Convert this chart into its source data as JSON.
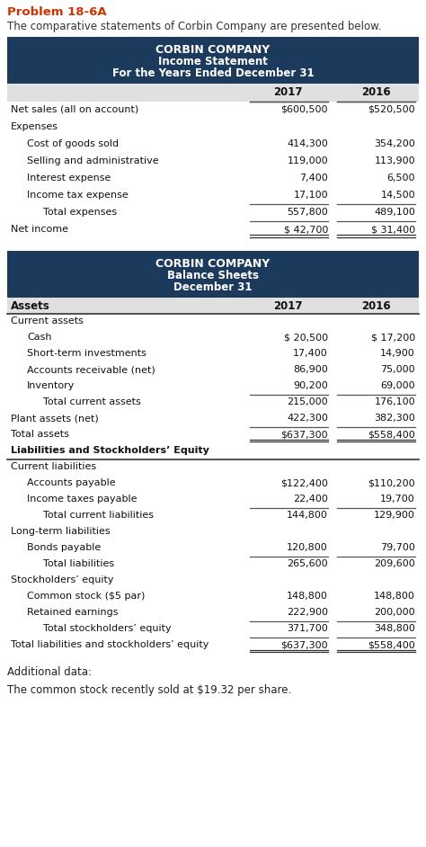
{
  "problem_title": "Problem 18-6A",
  "problem_desc": "The comparative statements of Corbin Company are presented below.",
  "header_bg": "#1b3a5c",
  "header_text_color": "#ffffff",
  "col_header_bg": "#e0e0e0",
  "income_header_lines": [
    "CORBIN COMPANY",
    "Income Statement",
    "For the Years Ended December 31"
  ],
  "balance_header_lines": [
    "CORBIN COMPANY",
    "Balance Sheets",
    "December 31"
  ],
  "income_rows": [
    {
      "label": "Net sales (all on account)",
      "v2017": "$600,500",
      "v2016": "$520,500",
      "indent": 0,
      "bold": false,
      "ul_before": true,
      "ul_after": false,
      "double_ul": false
    },
    {
      "label": "Expenses",
      "v2017": "",
      "v2016": "",
      "indent": 0,
      "bold": false,
      "ul_before": false,
      "ul_after": false,
      "double_ul": false
    },
    {
      "label": "Cost of goods sold",
      "v2017": "414,300",
      "v2016": "354,200",
      "indent": 1,
      "bold": false,
      "ul_before": false,
      "ul_after": false,
      "double_ul": false
    },
    {
      "label": "Selling and administrative",
      "v2017": "119,000",
      "v2016": "113,900",
      "indent": 1,
      "bold": false,
      "ul_before": false,
      "ul_after": false,
      "double_ul": false
    },
    {
      "label": "Interest expense",
      "v2017": "7,400",
      "v2016": "6,500",
      "indent": 1,
      "bold": false,
      "ul_before": false,
      "ul_after": false,
      "double_ul": false
    },
    {
      "label": "Income tax expense",
      "v2017": "17,100",
      "v2016": "14,500",
      "indent": 1,
      "bold": false,
      "ul_before": false,
      "ul_after": false,
      "double_ul": false
    },
    {
      "label": "Total expenses",
      "v2017": "557,800",
      "v2016": "489,100",
      "indent": 2,
      "bold": false,
      "ul_before": true,
      "ul_after": false,
      "double_ul": false
    },
    {
      "label": "Net income",
      "v2017": "$ 42,700",
      "v2016": "$ 31,400",
      "indent": 0,
      "bold": false,
      "ul_before": true,
      "ul_after": true,
      "double_ul": true
    }
  ],
  "balance_rows": [
    {
      "label": "Assets",
      "v2017": "2017",
      "v2016": "2016",
      "indent": 0,
      "bold": true,
      "header_row": true,
      "ul_before": false,
      "ul_after": true,
      "double_ul": false
    },
    {
      "label": "Current assets",
      "v2017": "",
      "v2016": "",
      "indent": 0,
      "bold": false,
      "header_row": false,
      "ul_before": false,
      "ul_after": false,
      "double_ul": false
    },
    {
      "label": "Cash",
      "v2017": "$ 20,500",
      "v2016": "$ 17,200",
      "indent": 1,
      "bold": false,
      "header_row": false,
      "ul_before": false,
      "ul_after": false,
      "double_ul": false
    },
    {
      "label": "Short-term investments",
      "v2017": "17,400",
      "v2016": "14,900",
      "indent": 1,
      "bold": false,
      "header_row": false,
      "ul_before": false,
      "ul_after": false,
      "double_ul": false
    },
    {
      "label": "Accounts receivable (net)",
      "v2017": "86,900",
      "v2016": "75,000",
      "indent": 1,
      "bold": false,
      "header_row": false,
      "ul_before": false,
      "ul_after": false,
      "double_ul": false
    },
    {
      "label": "Inventory",
      "v2017": "90,200",
      "v2016": "69,000",
      "indent": 1,
      "bold": false,
      "header_row": false,
      "ul_before": false,
      "ul_after": false,
      "double_ul": false
    },
    {
      "label": "Total current assets",
      "v2017": "215,000",
      "v2016": "176,100",
      "indent": 2,
      "bold": false,
      "header_row": false,
      "ul_before": true,
      "ul_after": false,
      "double_ul": false
    },
    {
      "label": "Plant assets (net)",
      "v2017": "422,300",
      "v2016": "382,300",
      "indent": 0,
      "bold": false,
      "header_row": false,
      "ul_before": false,
      "ul_after": false,
      "double_ul": false
    },
    {
      "label": "Total assets",
      "v2017": "$637,300",
      "v2016": "$558,400",
      "indent": 0,
      "bold": false,
      "header_row": false,
      "ul_before": true,
      "ul_after": true,
      "double_ul": true
    },
    {
      "label": "Liabilities and Stockholders’ Equity",
      "v2017": "",
      "v2016": "",
      "indent": 0,
      "bold": true,
      "header_row": false,
      "ul_before": false,
      "ul_after": true,
      "double_ul": false
    },
    {
      "label": "Current liabilities",
      "v2017": "",
      "v2016": "",
      "indent": 0,
      "bold": false,
      "header_row": false,
      "ul_before": false,
      "ul_after": false,
      "double_ul": false
    },
    {
      "label": "Accounts payable",
      "v2017": "$122,400",
      "v2016": "$110,200",
      "indent": 1,
      "bold": false,
      "header_row": false,
      "ul_before": false,
      "ul_after": false,
      "double_ul": false
    },
    {
      "label": "Income taxes payable",
      "v2017": "22,400",
      "v2016": "19,700",
      "indent": 1,
      "bold": false,
      "header_row": false,
      "ul_before": false,
      "ul_after": false,
      "double_ul": false
    },
    {
      "label": "Total current liabilities",
      "v2017": "144,800",
      "v2016": "129,900",
      "indent": 2,
      "bold": false,
      "header_row": false,
      "ul_before": true,
      "ul_after": false,
      "double_ul": false
    },
    {
      "label": "Long-term liabilities",
      "v2017": "",
      "v2016": "",
      "indent": 0,
      "bold": false,
      "header_row": false,
      "ul_before": false,
      "ul_after": false,
      "double_ul": false
    },
    {
      "label": "Bonds payable",
      "v2017": "120,800",
      "v2016": "79,700",
      "indent": 1,
      "bold": false,
      "header_row": false,
      "ul_before": false,
      "ul_after": false,
      "double_ul": false
    },
    {
      "label": "Total liabilities",
      "v2017": "265,600",
      "v2016": "209,600",
      "indent": 2,
      "bold": false,
      "header_row": false,
      "ul_before": true,
      "ul_after": false,
      "double_ul": false
    },
    {
      "label": "Stockholders’ equity",
      "v2017": "",
      "v2016": "",
      "indent": 0,
      "bold": false,
      "header_row": false,
      "ul_before": false,
      "ul_after": false,
      "double_ul": false
    },
    {
      "label": "Common stock ($5 par)",
      "v2017": "148,800",
      "v2016": "148,800",
      "indent": 1,
      "bold": false,
      "header_row": false,
      "ul_before": false,
      "ul_after": false,
      "double_ul": false
    },
    {
      "label": "Retained earnings",
      "v2017": "222,900",
      "v2016": "200,000",
      "indent": 1,
      "bold": false,
      "header_row": false,
      "ul_before": false,
      "ul_after": false,
      "double_ul": false
    },
    {
      "label": "Total stockholders’ equity",
      "v2017": "371,700",
      "v2016": "348,800",
      "indent": 2,
      "bold": false,
      "header_row": false,
      "ul_before": true,
      "ul_after": false,
      "double_ul": false
    },
    {
      "label": "Total liabilities and stockholders’ equity",
      "v2017": "$637,300",
      "v2016": "$558,400",
      "indent": 0,
      "bold": false,
      "header_row": false,
      "ul_before": true,
      "ul_after": true,
      "double_ul": true
    }
  ],
  "additional_data": "Additional data:",
  "additional_note": "The common stock recently sold at $19.32 per share."
}
